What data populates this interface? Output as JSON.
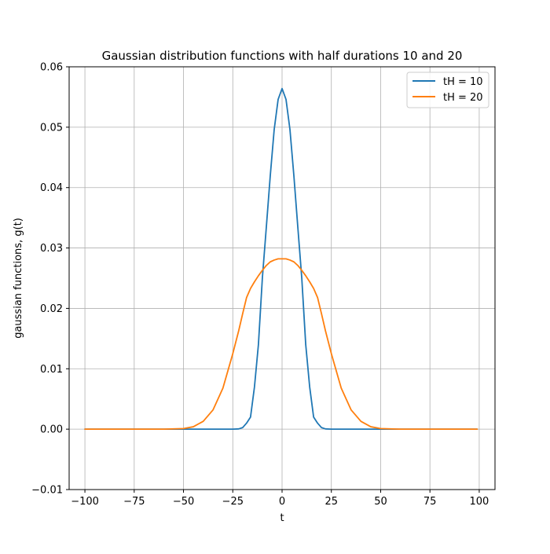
{
  "chart_data": {
    "type": "line",
    "title": "Gaussian distribution functions with half durations 10 and 20",
    "xlabel": "t",
    "ylabel": "gaussian functions, g(t)",
    "xlim": [
      -108,
      108
    ],
    "ylim": [
      -0.01,
      0.06
    ],
    "xticks": [
      -100,
      -75,
      -50,
      -25,
      0,
      25,
      50,
      75,
      100
    ],
    "xtick_labels": [
      "−100",
      "−75",
      "−50",
      "−25",
      "0",
      "25",
      "50",
      "75",
      "100"
    ],
    "yticks": [
      -0.01,
      0.0,
      0.01,
      0.02,
      0.03,
      0.04,
      0.05,
      0.06
    ],
    "ytick_labels": [
      "−0.01",
      "0.00",
      "0.01",
      "0.02",
      "0.03",
      "0.04",
      "0.05",
      "0.06"
    ],
    "grid": true,
    "legend_position": "top-right",
    "x": [
      -100,
      -90,
      -80,
      -70,
      -60,
      -50,
      -45,
      -40,
      -35,
      -30,
      -25,
      -22,
      -20,
      -18,
      -16,
      -14,
      -12,
      -10,
      -8,
      -6,
      -4,
      -2,
      0,
      2,
      4,
      6,
      8,
      10,
      12,
      14,
      16,
      18,
      20,
      22,
      25,
      30,
      35,
      40,
      45,
      50,
      60,
      70,
      80,
      90,
      99
    ],
    "series": [
      {
        "name": "tH = 10",
        "color": "#1f77b4",
        "values": [
          0.0,
          0.0,
          0.0,
          0.0,
          0.0,
          0.0,
          0.0,
          0.0,
          0.0,
          0.0,
          1e-06,
          4.5e-05,
          0.000258,
          0.001,
          0.002,
          0.007,
          0.014,
          0.025,
          0.0334,
          0.0419,
          0.0496,
          0.0546,
          0.0564,
          0.0546,
          0.0496,
          0.0419,
          0.0334,
          0.025,
          0.014,
          0.007,
          0.002,
          0.001,
          0.000258,
          4.5e-05,
          1e-06,
          0.0,
          0.0,
          0.0,
          0.0,
          0.0,
          0.0,
          0.0,
          0.0,
          0.0,
          0.0
        ]
      },
      {
        "name": "tH = 20",
        "color": "#ff7f0e",
        "values": [
          0.0,
          0.0,
          0.0,
          0.0,
          2e-06,
          0.0001,
          0.0004,
          0.0013,
          0.0032,
          0.0068,
          0.0125,
          0.0163,
          0.0191,
          0.0218,
          0.0233,
          0.0244,
          0.0254,
          0.0263,
          0.0271,
          0.0277,
          0.028,
          0.0282,
          0.0282,
          0.0282,
          0.028,
          0.0277,
          0.0271,
          0.0263,
          0.0254,
          0.0244,
          0.0233,
          0.0218,
          0.0191,
          0.0163,
          0.0125,
          0.0068,
          0.0032,
          0.0013,
          0.0004,
          0.0001,
          2e-06,
          0.0,
          0.0,
          0.0,
          0.0
        ]
      }
    ]
  }
}
